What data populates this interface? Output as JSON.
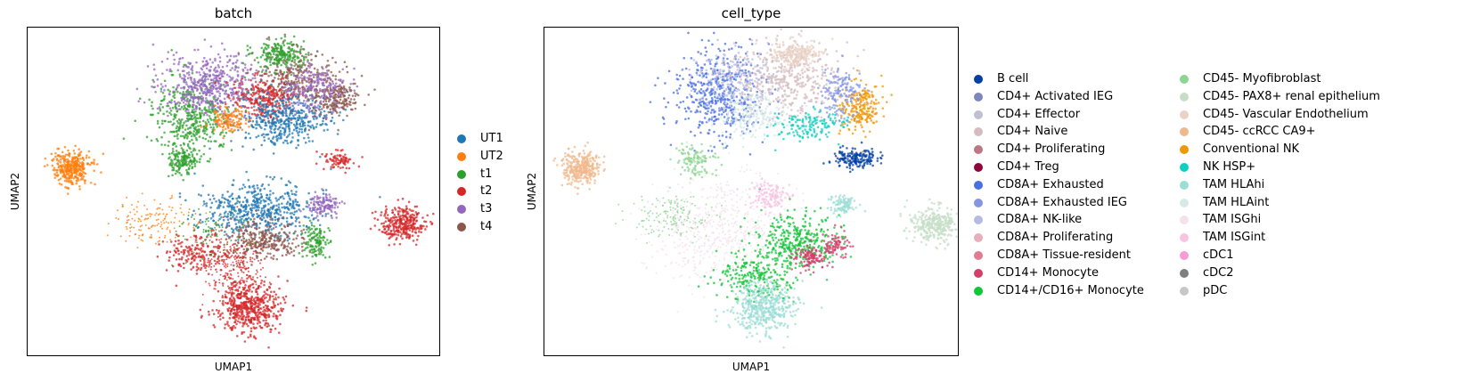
{
  "chart_data": [
    {
      "type": "scatter",
      "title": "batch",
      "xlabel": "UMAP1",
      "ylabel": "UMAP2",
      "ticks": false,
      "legend_placement": "right",
      "series": [
        {
          "name": "UT1",
          "color": "#1f77b4"
        },
        {
          "name": "UT2",
          "color": "#ff7f0e"
        },
        {
          "name": "t1",
          "color": "#2ca02c"
        },
        {
          "name": "t2",
          "color": "#d62728"
        },
        {
          "name": "t3",
          "color": "#9467bd"
        },
        {
          "name": "t4",
          "color": "#8c564b"
        }
      ]
    },
    {
      "type": "scatter",
      "title": "cell_type",
      "xlabel": "UMAP1",
      "ylabel": "UMAP2",
      "ticks": false,
      "legend_placement": "right",
      "series": [
        {
          "name": "B cell",
          "color": "#023fa5"
        },
        {
          "name": "CD4+ Activated IEG",
          "color": "#7d87b9"
        },
        {
          "name": "CD4+ Effector",
          "color": "#bec1d4"
        },
        {
          "name": "CD4+ Naive",
          "color": "#d6bcc0"
        },
        {
          "name": "CD4+ Proliferating",
          "color": "#bb7784"
        },
        {
          "name": "CD4+ Treg",
          "color": "#8e063b"
        },
        {
          "name": "CD8A+ Exhausted",
          "color": "#4a6fe3"
        },
        {
          "name": "CD8A+ Exhausted IEG",
          "color": "#8595e1"
        },
        {
          "name": "CD8A+ NK-like",
          "color": "#b5bbe3"
        },
        {
          "name": "CD8A+ Proliferating",
          "color": "#e6afb9"
        },
        {
          "name": "CD8A+ Tissue-resident",
          "color": "#e07b91"
        },
        {
          "name": "CD14+ Monocyte",
          "color": "#d33f6a"
        },
        {
          "name": "CD14+/CD16+ Monocyte",
          "color": "#11c638"
        },
        {
          "name": "CD45- Myofibroblast",
          "color": "#8dd593"
        },
        {
          "name": "CD45- PAX8+ renal epithelium",
          "color": "#c6dec7"
        },
        {
          "name": "CD45- Vascular Endothelium",
          "color": "#ead3c6"
        },
        {
          "name": "CD45- ccRCC CA9+",
          "color": "#f0b98d"
        },
        {
          "name": "Conventional NK",
          "color": "#ef9708"
        },
        {
          "name": "NK HSP+",
          "color": "#0fcfc0"
        },
        {
          "name": "TAM HLAhi",
          "color": "#9cded6"
        },
        {
          "name": "TAM HLAint",
          "color": "#d5eae7"
        },
        {
          "name": "TAM ISGhi",
          "color": "#f3e1eb"
        },
        {
          "name": "TAM ISGint",
          "color": "#f6c4e1"
        },
        {
          "name": "cDC1",
          "color": "#f79cd4"
        },
        {
          "name": "cDC2",
          "color": "#7f7f7f"
        },
        {
          "name": "pDC",
          "color": "#c7c7c7"
        }
      ]
    }
  ]
}
